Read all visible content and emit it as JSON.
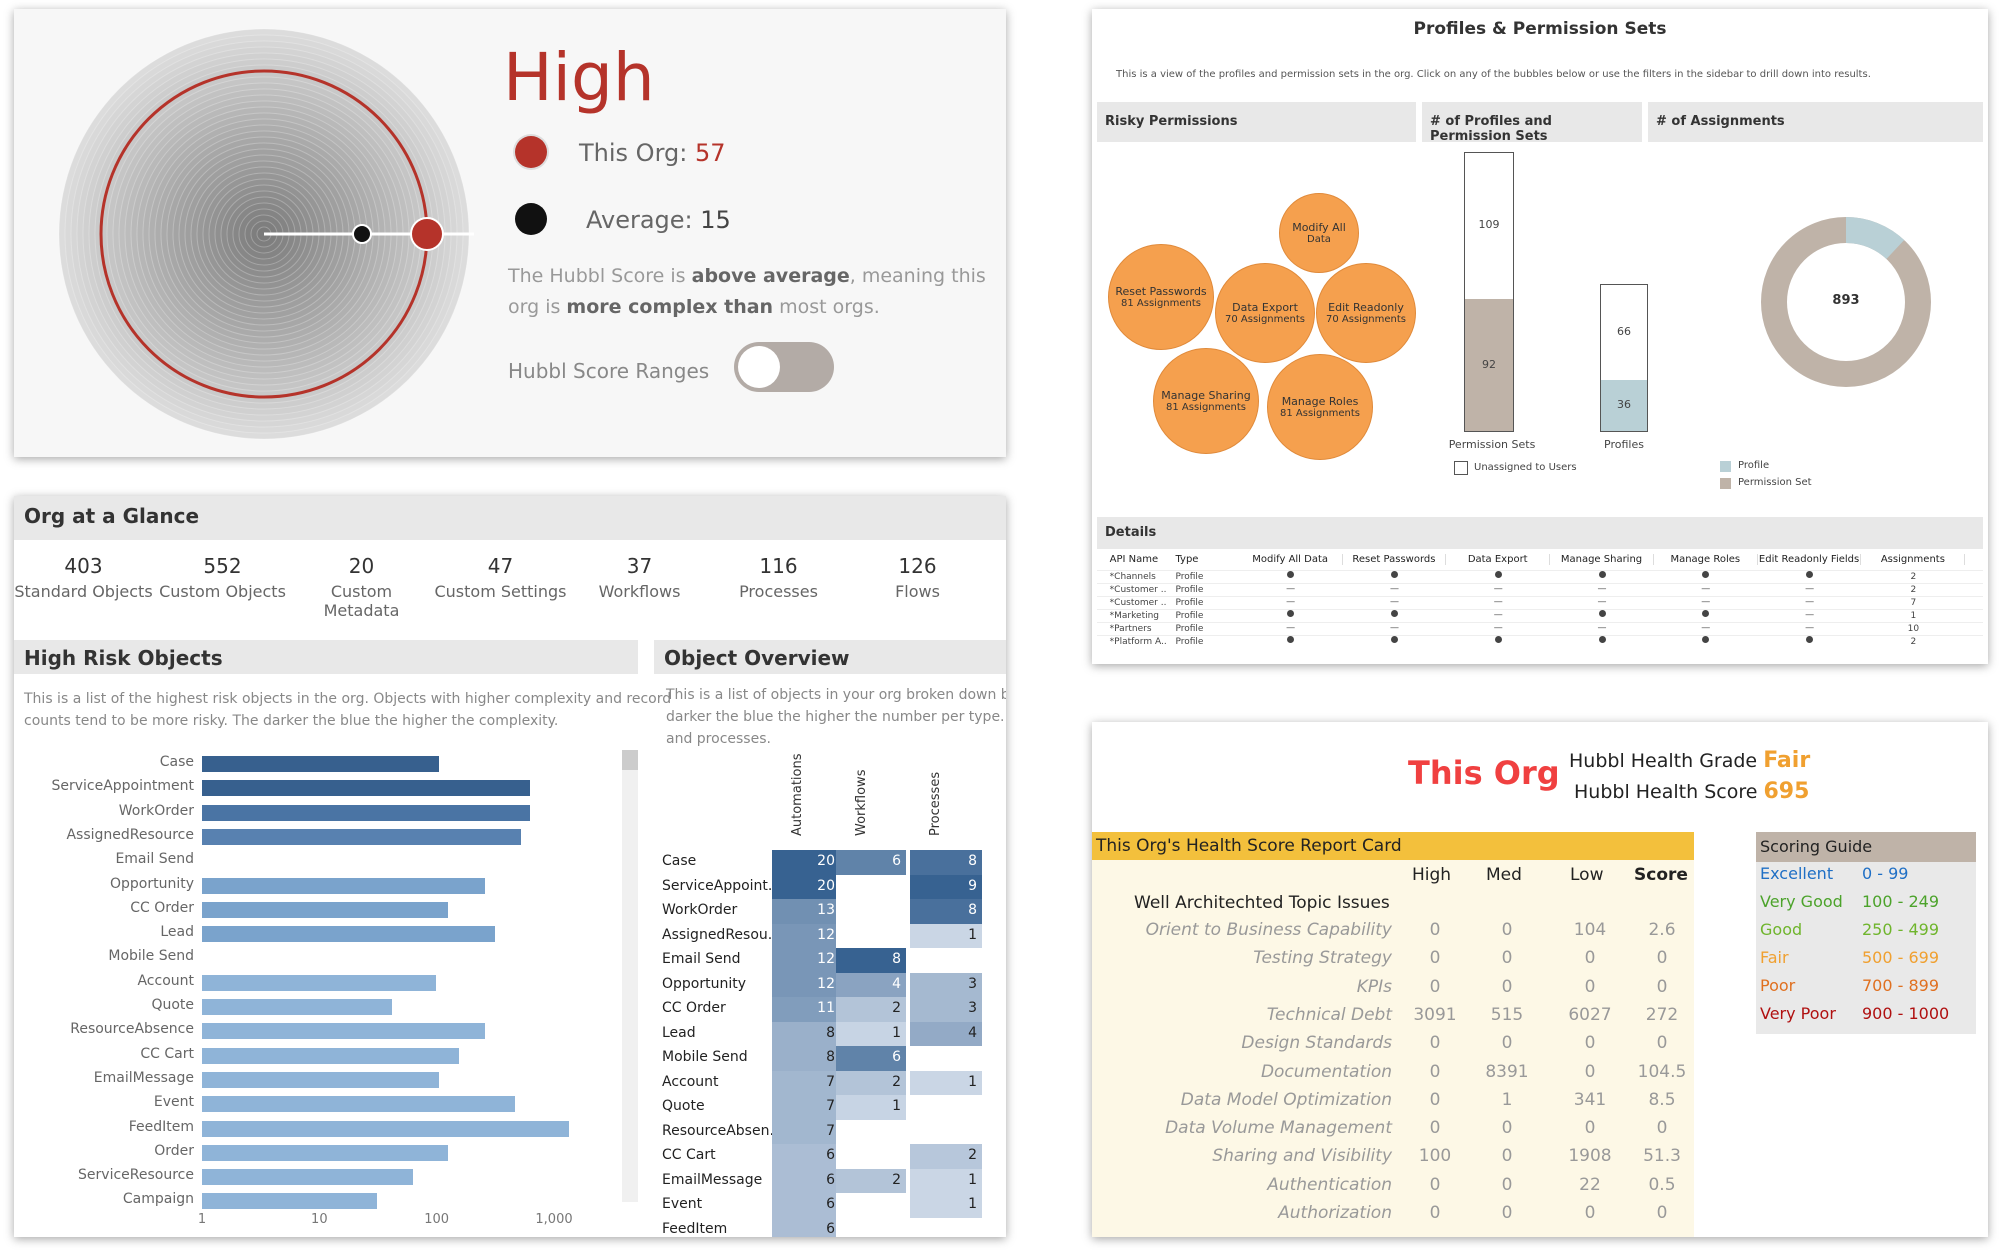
{
  "score": {
    "level": "High",
    "this_org_label": "This Org:",
    "this_org_value": "57",
    "average_label": "Average:",
    "average_value": "15",
    "desc_1": "The Hubbl Score is ",
    "desc_2": "above average",
    "desc_3": ", meaning this",
    "desc_4": "org is ",
    "desc_5": "more complex than",
    "desc_6": " most orgs.",
    "ranges_label": "Hubbl Score Ranges",
    "colors": {
      "accent": "#b5332a",
      "dark": "#111111"
    }
  },
  "glance": {
    "title": "Org at a Glance",
    "stats": [
      {
        "value": "403",
        "label": "Standard Objects"
      },
      {
        "value": "552",
        "label": "Custom Objects"
      },
      {
        "value": "20",
        "label": "Custom Metadata"
      },
      {
        "value": "47",
        "label": "Custom Settings"
      },
      {
        "value": "37",
        "label": "Workflows"
      },
      {
        "value": "116",
        "label": "Processes"
      },
      {
        "value": "126",
        "label": "Flows"
      }
    ]
  },
  "high_risk": {
    "title": "High Risk Objects",
    "desc_1": "This is a list of the highest risk objects in the org. Objects with higher complexity and record",
    "desc_2": "counts tend to be more risky. The darker the blue the higher the complexity.",
    "x_ticks": [
      "1",
      "10",
      "100",
      "1,000"
    ],
    "chart_data": {
      "type": "bar",
      "orientation": "horizontal",
      "x_scale": "log",
      "xlim": [
        1,
        1000
      ],
      "categories": [
        "Case",
        "ServiceAppointment",
        "WorkOrder",
        "AssignedResource",
        "Email Send",
        "Opportunity",
        "CC Order",
        "Lead",
        "Mobile Send",
        "Account",
        "Quote",
        "ResourceAbsence",
        "CC Cart",
        "EmailMessage",
        "Event",
        "FeedItem",
        "Order",
        "ServiceResource",
        "Campaign"
      ],
      "values": [
        100,
        600,
        600,
        500,
        0,
        250,
        120,
        300,
        0,
        95,
        40,
        250,
        150,
        100,
        450,
        1300,
        120,
        60,
        30
      ],
      "colors": [
        "#37608e",
        "#37608e",
        "#4a74a4",
        "#5881b0",
        "#ffffff",
        "#7aa3cc",
        "#7aa3cc",
        "#7aa3cc",
        "#ffffff",
        "#8fb4d8",
        "#8fb4d8",
        "#8fb4d8",
        "#8fb4d8",
        "#8fb4d8",
        "#8fb4d8",
        "#8fb4d8",
        "#8fb4d8",
        "#8fb4d8",
        "#8fb4d8"
      ]
    }
  },
  "overview": {
    "title": "Object Overview",
    "desc_1": "This is a list of  objects in your org broken down by",
    "desc_2": "darker the blue the higher the number per type. Ob",
    "desc_3": "and processes.",
    "columns": [
      "Automations",
      "Workflows",
      "Processes"
    ],
    "rows": [
      {
        "name": "Case",
        "a": "20",
        "w": "6",
        "p": "8"
      },
      {
        "name": "ServiceAppoint..",
        "a": "20",
        "w": "",
        "p": "9"
      },
      {
        "name": "WorkOrder",
        "a": "13",
        "w": "",
        "p": "8"
      },
      {
        "name": "AssignedResou..",
        "a": "12",
        "w": "",
        "p": "1"
      },
      {
        "name": "Email Send",
        "a": "12",
        "w": "8",
        "p": ""
      },
      {
        "name": "Opportunity",
        "a": "12",
        "w": "4",
        "p": "3"
      },
      {
        "name": "CC Order",
        "a": "11",
        "w": "2",
        "p": "3"
      },
      {
        "name": "Lead",
        "a": "8",
        "w": "1",
        "p": "4"
      },
      {
        "name": "Mobile Send",
        "a": "8",
        "w": "6",
        "p": ""
      },
      {
        "name": "Account",
        "a": "7",
        "w": "2",
        "p": "1"
      },
      {
        "name": "Quote",
        "a": "7",
        "w": "1",
        "p": ""
      },
      {
        "name": "ResourceAbsen..",
        "a": "7",
        "w": "",
        "p": ""
      },
      {
        "name": "CC Cart",
        "a": "6",
        "w": "",
        "p": "2"
      },
      {
        "name": "EmailMessage",
        "a": "6",
        "w": "2",
        "p": "1"
      },
      {
        "name": "Event",
        "a": "6",
        "w": "",
        "p": "1"
      },
      {
        "name": "FeedItem",
        "a": "6",
        "w": "",
        "p": ""
      }
    ]
  },
  "profiles": {
    "title": "Profiles & Permission Sets",
    "desc": "This is a view of the profiles and permission sets in the org. Click on any of the bubbles below or use the filters in the sidebar to drill down into results.",
    "risky_title": "Risky Permissions",
    "count_title": "# of Profiles and Permission Sets",
    "assign_title": "# of Assignments",
    "bubbles": [
      {
        "l1": "Modify All",
        "l2": "Data"
      },
      {
        "l1": "Reset Passwords",
        "l2": "81 Assignments"
      },
      {
        "l1": "Data Export",
        "l2": "70 Assignments"
      },
      {
        "l1": "Edit Readonly",
        "l2": "70 Assignments"
      },
      {
        "l1": "Manage Sharing",
        "l2": "81 Assignments"
      },
      {
        "l1": "Manage Roles",
        "l2": "81 Assignments"
      }
    ],
    "perm_sets": {
      "label": "Permission Sets",
      "top": "109",
      "bottom": "92"
    },
    "profiles_col": {
      "label": "Profiles",
      "top": "66",
      "bottom": "36"
    },
    "unassigned_label": "Unassigned to Users",
    "donut": {
      "total": "893",
      "profile_fraction": 0.12,
      "legend": [
        "Profile",
        "Permission Set"
      ],
      "colors": [
        "#b9d0d6",
        "#bfb3a8"
      ]
    },
    "details_title": "Details",
    "table_headers": [
      "API Name",
      "Type",
      "Modify All Data",
      "Reset Passwords",
      "Data Export",
      "Manage Sharing",
      "Manage Roles",
      "Edit Readonly Fields",
      "Assignments"
    ],
    "table_rows": [
      {
        "name": "*Channels",
        "type": "Profile",
        "v": [
          "dot",
          "dot",
          "dot",
          "dot",
          "dot",
          "dot"
        ],
        "assign": "2"
      },
      {
        "name": "*Customer ..",
        "type": "Profile",
        "v": [
          "—",
          "—",
          "—",
          "—",
          "—",
          "—"
        ],
        "assign": "2"
      },
      {
        "name": "*Customer ..",
        "type": "Profile",
        "v": [
          "—",
          "—",
          "—",
          "—",
          "—",
          "—"
        ],
        "assign": "7"
      },
      {
        "name": "*Marketing",
        "type": "Profile",
        "v": [
          "dot",
          "dot",
          "—",
          "dot",
          "dot",
          "—"
        ],
        "assign": "1"
      },
      {
        "name": "*Partners",
        "type": "Profile",
        "v": [
          "—",
          "—",
          "—",
          "—",
          "—",
          "—"
        ],
        "assign": "10"
      },
      {
        "name": "*Platform A..",
        "type": "Profile",
        "v": [
          "dot",
          "dot",
          "dot",
          "dot",
          "dot",
          "dot"
        ],
        "assign": "2"
      }
    ]
  },
  "health": {
    "org_title": "This Org",
    "grade_label": "Hubbl Health Grade",
    "grade_value": "Fair",
    "score_label": "Hubbl Health Score",
    "score_value": "695",
    "report_title": "This Org's Health Score Report Card",
    "col_high": "High",
    "col_med": "Med",
    "col_low": "Low",
    "col_score": "Score",
    "section": "Well Architechted Topic Issues",
    "rows": [
      {
        "topic": "Orient to Business Capability",
        "high": "0",
        "med": "0",
        "low": "104",
        "score": "2.6"
      },
      {
        "topic": "Testing Strategy",
        "high": "0",
        "med": "0",
        "low": "0",
        "score": "0"
      },
      {
        "topic": "KPIs",
        "high": "0",
        "med": "0",
        "low": "0",
        "score": "0"
      },
      {
        "topic": "Technical Debt",
        "high": "3091",
        "med": "515",
        "low": "6027",
        "score": "272"
      },
      {
        "topic": "Design Standards",
        "high": "0",
        "med": "0",
        "low": "0",
        "score": "0"
      },
      {
        "topic": "Documentation",
        "high": "0",
        "med": "8391",
        "low": "0",
        "score": "104.5"
      },
      {
        "topic": "Data Model Optimization",
        "high": "0",
        "med": "1",
        "low": "341",
        "score": "8.5"
      },
      {
        "topic": "Data Volume Management",
        "high": "0",
        "med": "0",
        "low": "0",
        "score": "0"
      },
      {
        "topic": "Sharing and Visibility",
        "high": "100",
        "med": "0",
        "low": "1908",
        "score": "51.3"
      },
      {
        "topic": "Authentication",
        "high": "0",
        "med": "0",
        "low": "22",
        "score": "0.5"
      },
      {
        "topic": "Authorization",
        "high": "0",
        "med": "0",
        "low": "0",
        "score": "0"
      }
    ],
    "guide_title": "Scoring Guide",
    "guide": [
      {
        "name": "Excellent",
        "range": "0 - 99",
        "color": "#1f6fc5"
      },
      {
        "name": "Very Good",
        "range": "100 - 249",
        "color": "#4ca32b"
      },
      {
        "name": "Good",
        "range": "250 - 499",
        "color": "#6fb52c"
      },
      {
        "name": "Fair",
        "range": "500 - 699",
        "color": "#f0a030"
      },
      {
        "name": "Poor",
        "range": "700 - 899",
        "color": "#e07020"
      },
      {
        "name": "Very Poor",
        "range": "900 - 1000",
        "color": "#b01010"
      }
    ]
  }
}
